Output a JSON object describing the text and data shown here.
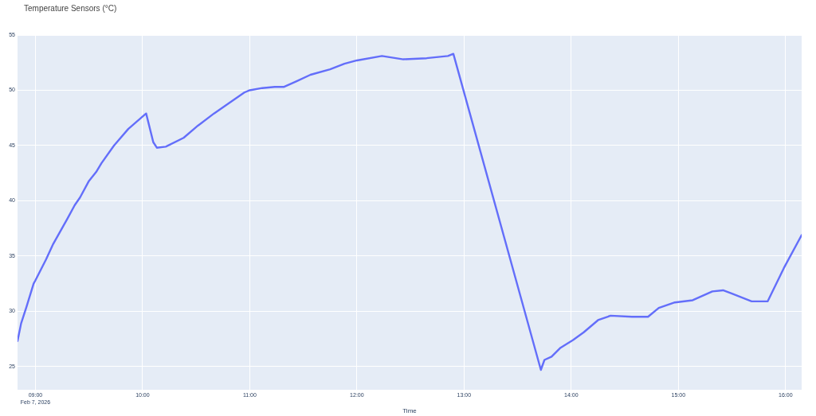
{
  "chart_data": {
    "type": "line",
    "title": "Temperature Sensors (°C)",
    "xlabel": "Time",
    "x": [
      "2026-02-07T08:50",
      "2026-02-07T08:52",
      "2026-02-07T08:55",
      "2026-02-07T08:59",
      "2026-02-07T09:00",
      "2026-02-07T09:06",
      "2026-02-07T09:10",
      "2026-02-07T09:18",
      "2026-02-07T09:22",
      "2026-02-07T09:25",
      "2026-02-07T09:30",
      "2026-02-07T09:34",
      "2026-02-07T09:37",
      "2026-02-07T09:44",
      "2026-02-07T09:52",
      "2026-02-07T10:02",
      "2026-02-07T10:06",
      "2026-02-07T10:08",
      "2026-02-07T10:13",
      "2026-02-07T10:23",
      "2026-02-07T10:31",
      "2026-02-07T10:40",
      "2026-02-07T10:48",
      "2026-02-07T10:57",
      "2026-02-07T11:00",
      "2026-02-07T11:07",
      "2026-02-07T11:14",
      "2026-02-07T11:19",
      "2026-02-07T11:26",
      "2026-02-07T11:34",
      "2026-02-07T11:45",
      "2026-02-07T11:53",
      "2026-02-07T12:00",
      "2026-02-07T12:14",
      "2026-02-07T12:26",
      "2026-02-07T12:39",
      "2026-02-07T12:51",
      "2026-02-07T12:54",
      "2026-02-07T13:43",
      "2026-02-07T13:45",
      "2026-02-07T13:49",
      "2026-02-07T13:54",
      "2026-02-07T14:01",
      "2026-02-07T14:07",
      "2026-02-07T14:15",
      "2026-02-07T14:22",
      "2026-02-07T14:34",
      "2026-02-07T14:43",
      "2026-02-07T14:49",
      "2026-02-07T14:58",
      "2026-02-07T15:08",
      "2026-02-07T15:19",
      "2026-02-07T15:25",
      "2026-02-07T15:30",
      "2026-02-07T15:41",
      "2026-02-07T15:50",
      "2026-02-07T15:59",
      "2026-02-07T16:09"
    ],
    "series": [
      {
        "color": "#636efa",
        "values": [
          27.3,
          28.9,
          30.4,
          32.5,
          32.8,
          34.7,
          36.1,
          38.4,
          39.6,
          40.3,
          41.8,
          42.6,
          43.4,
          45.0,
          46.5,
          47.9,
          45.3,
          44.8,
          44.9,
          45.7,
          46.8,
          47.9,
          48.8,
          49.8,
          50.0,
          50.2,
          50.3,
          50.3,
          50.8,
          51.4,
          51.9,
          52.4,
          52.7,
          53.1,
          52.8,
          52.9,
          53.1,
          53.3,
          24.7,
          25.6,
          25.9,
          26.7,
          27.4,
          28.1,
          29.2,
          29.6,
          29.5,
          29.5,
          30.3,
          30.8,
          31.0,
          31.8,
          31.9,
          31.6,
          30.9,
          30.9,
          33.9,
          36.9
        ]
      }
    ],
    "xlim": [
      "2026-02-07T08:50",
      "2026-02-07T16:09"
    ],
    "xticks": [
      {
        "value": "2026-02-07T09:00",
        "label": "09:00\nFeb 7, 2026"
      },
      {
        "value": "2026-02-07T10:00",
        "label": "10:00"
      },
      {
        "value": "2026-02-07T11:00",
        "label": "11:00"
      },
      {
        "value": "2026-02-07T12:00",
        "label": "12:00"
      },
      {
        "value": "2026-02-07T13:00",
        "label": "13:00"
      },
      {
        "value": "2026-02-07T14:00",
        "label": "14:00"
      },
      {
        "value": "2026-02-07T15:00",
        "label": "15:00"
      },
      {
        "value": "2026-02-07T16:00",
        "label": "16:00"
      }
    ],
    "ylim": [
      22.9,
      55
    ],
    "yticks": [
      25,
      30,
      35,
      40,
      45,
      50,
      55
    ],
    "grid": true,
    "legend": false,
    "marker": "none",
    "line_style": "solid"
  }
}
